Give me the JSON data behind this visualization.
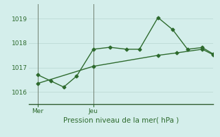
{
  "title": "Pression niveau de la mer( hPa )",
  "background_color": "#d4eeeb",
  "line_color": "#2d6a2d",
  "grid_color": "#c0ddd8",
  "ylim": [
    1015.5,
    1019.6
  ],
  "yticks": [
    1016,
    1017,
    1018,
    1019
  ],
  "xlim": [
    0,
    10
  ],
  "x_tick_positions": [
    0.5,
    3.5
  ],
  "x_tick_labels": [
    "Mer",
    "Jeu"
  ],
  "x_vline_positions": [
    0.5,
    3.5
  ],
  "line1_x": [
    0.5,
    1.2,
    1.9,
    2.6,
    3.5,
    4.4,
    5.3,
    6.0,
    7.0,
    7.8,
    8.6,
    9.4,
    10.0
  ],
  "line1_y": [
    1016.7,
    1016.45,
    1016.2,
    1016.65,
    1017.75,
    1017.83,
    1017.75,
    1017.75,
    1019.05,
    1018.55,
    1017.75,
    1017.82,
    1017.55
  ],
  "line2_x": [
    0.5,
    3.5,
    7.0,
    8.0,
    9.4,
    10.0
  ],
  "line2_y": [
    1016.35,
    1017.05,
    1017.5,
    1017.6,
    1017.75,
    1017.52
  ],
  "marker_size": 2.5,
  "line_width": 1.0
}
